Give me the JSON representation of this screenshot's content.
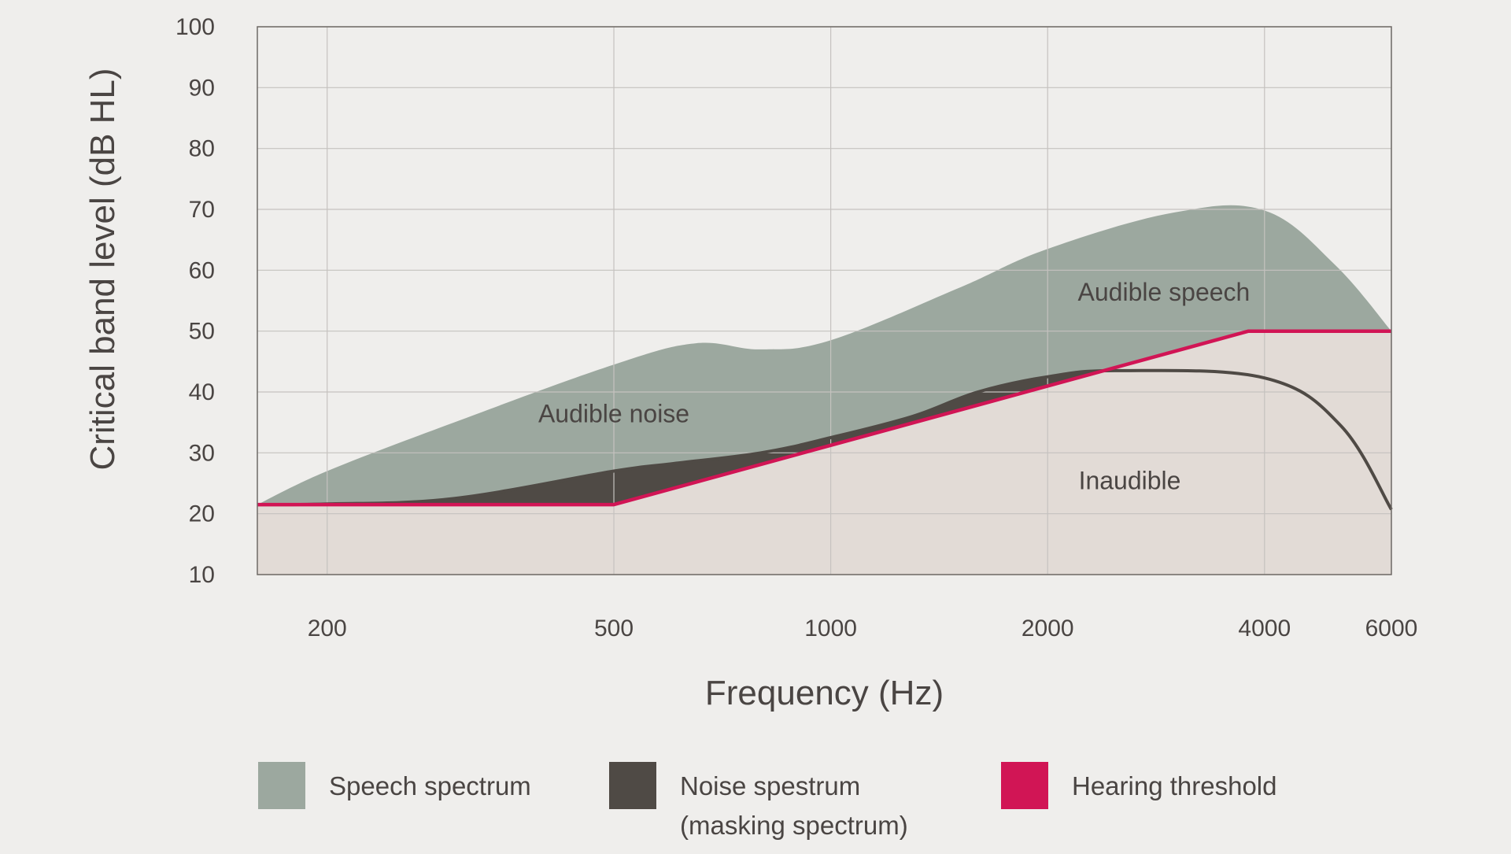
{
  "chart_data": {
    "type": "area",
    "xlabel": "Frequency (Hz)",
    "ylabel": "Critical band level (dB HL)",
    "x_scale": "log",
    "xlim": [
      160,
      6000
    ],
    "ylim": [
      10,
      100
    ],
    "x_ticks": [
      200,
      500,
      1000,
      2000,
      4000,
      6000
    ],
    "y_ticks": [
      10,
      20,
      30,
      40,
      50,
      60,
      70,
      80,
      90,
      100
    ],
    "grid": true,
    "colors": {
      "speech": "#9ca89f",
      "noise": "#4f4a45",
      "threshold": "#d11555",
      "inaudible": "#e2dbd6",
      "grid": "#c5c2bf",
      "frame": "#6f6a66"
    },
    "series": [
      {
        "name": "Speech spectrum",
        "x": [
          160,
          200,
          300,
          500,
          650,
          800,
          1000,
          1500,
          2000,
          3000,
          4000,
          5000,
          6000
        ],
        "values": [
          21.5,
          27,
          35,
          44.5,
          48,
          47,
          48.5,
          57,
          63.5,
          69.5,
          69.8,
          61,
          50
        ]
      },
      {
        "name": "Noise spestrum (masking spectrum)",
        "x": [
          160,
          200,
          300,
          500,
          600,
          800,
          1000,
          1300,
          1600,
          2000,
          2500,
          4000,
          5100,
          6000
        ],
        "values": [
          21.5,
          21.6,
          22.5,
          27,
          28.2,
          30,
          32.5,
          36,
          40,
          42.5,
          43.5,
          42.3,
          34.5,
          20.7
        ]
      },
      {
        "name": "Hearing threshold",
        "x": [
          160,
          500,
          3800,
          6000
        ],
        "values": [
          21.5,
          21.5,
          50,
          50
        ]
      }
    ],
    "annotations": [
      {
        "text": "Audible noise",
        "x": 500,
        "y": 35
      },
      {
        "text": "Audible speech",
        "x": 2900,
        "y": 55
      },
      {
        "text": "Inaudible",
        "x": 2600,
        "y": 24
      }
    ],
    "legend": {
      "placement": "bottom",
      "items": [
        {
          "label": "Speech spectrum",
          "label2": "",
          "color": "#9ca89f"
        },
        {
          "label": "Noise spestrum",
          "label2": "(masking spectrum)",
          "color": "#4f4a45"
        },
        {
          "label": "Hearing threshold",
          "label2": "",
          "color": "#d11555"
        }
      ]
    }
  }
}
